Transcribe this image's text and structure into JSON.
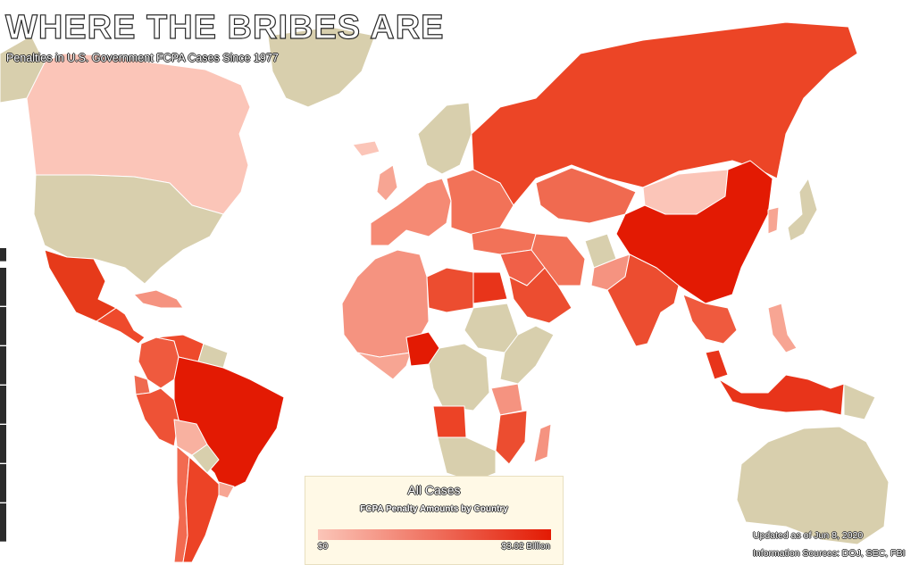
{
  "title": "WHERE THE BRIBES ARE",
  "subtitle": "Penalties in U.S. Government FCPA Cases Since 1977",
  "legend": {
    "title": "All Cases",
    "subtitle": "FCPA Penalty Amounts by Country",
    "min_label": "$0",
    "max_label": "$3.02 Billion",
    "color_low": "#fbc5b8",
    "color_high": "#e31a03"
  },
  "footer": {
    "updated": "Updated as of Jun 8, 2020",
    "sources": "Information Sources: DOJ, SEC, FBI"
  },
  "colors": {
    "no_data": "#d8cfad",
    "background": "#ffffff",
    "legend_background": "#fff9e6"
  },
  "countries": [
    {
      "name": "Canada",
      "color": "#fbc5b8"
    },
    {
      "name": "Greenland",
      "color": "#d8cfad"
    },
    {
      "name": "United States",
      "color": "#d8cfad"
    },
    {
      "name": "Mexico",
      "color": "#e63a1a"
    },
    {
      "name": "Central America",
      "color": "#ee4a2c"
    },
    {
      "name": "Caribbean",
      "color": "#f59380"
    },
    {
      "name": "Colombia",
      "color": "#ef5a3e"
    },
    {
      "name": "Venezuela",
      "color": "#ee4a2c"
    },
    {
      "name": "Guianas",
      "color": "#d8cfad"
    },
    {
      "name": "Ecuador",
      "color": "#ef6a50"
    },
    {
      "name": "Peru",
      "color": "#ee5236"
    },
    {
      "name": "Brazil",
      "color": "#e31a03"
    },
    {
      "name": "Bolivia",
      "color": "#f8b1a0"
    },
    {
      "name": "Paraguay",
      "color": "#d8cfad"
    },
    {
      "name": "Chile",
      "color": "#f26a50"
    },
    {
      "name": "Argentina",
      "color": "#ec4326"
    },
    {
      "name": "Uruguay",
      "color": "#f7a593"
    },
    {
      "name": "Iceland",
      "color": "#fbc5b8"
    },
    {
      "name": "United Kingdom",
      "color": "#f7a593"
    },
    {
      "name": "Scandinavia",
      "color": "#d8cfad"
    },
    {
      "name": "Western Europe",
      "color": "#f58a74"
    },
    {
      "name": "Eastern Europe",
      "color": "#f27258"
    },
    {
      "name": "Russia",
      "color": "#ec4526"
    },
    {
      "name": "Kazakhstan",
      "color": "#f06a50"
    },
    {
      "name": "Mongolia",
      "color": "#fbc5b8"
    },
    {
      "name": "China",
      "color": "#e31a03"
    },
    {
      "name": "Japan",
      "color": "#d8cfad"
    },
    {
      "name": "Korea",
      "color": "#f7a593"
    },
    {
      "name": "Turkey",
      "color": "#f27258"
    },
    {
      "name": "Middle East",
      "color": "#f06048"
    },
    {
      "name": "Saudi Arabia",
      "color": "#ec4d30"
    },
    {
      "name": "Iran",
      "color": "#f27258"
    },
    {
      "name": "Afghanistan",
      "color": "#d8cfad"
    },
    {
      "name": "Pakistan",
      "color": "#f59380"
    },
    {
      "name": "India",
      "color": "#ec4d30"
    },
    {
      "name": "Southeast Asia",
      "color": "#ef5a3e"
    },
    {
      "name": "Philippines",
      "color": "#f7a593"
    },
    {
      "name": "Malaysia",
      "color": "#e8341a"
    },
    {
      "name": "Indonesia",
      "color": "#e8341a"
    },
    {
      "name": "Papua New Guinea",
      "color": "#d8cfad"
    },
    {
      "name": "Australia",
      "color": "#d8cfad"
    },
    {
      "name": "North Africa",
      "color": "#f59380"
    },
    {
      "name": "Libya",
      "color": "#ec4d30"
    },
    {
      "name": "Egypt",
      "color": "#e8341a"
    },
    {
      "name": "West Africa",
      "color": "#f7a593"
    },
    {
      "name": "Nigeria",
      "color": "#e31a03"
    },
    {
      "name": "Sudan",
      "color": "#d8cfad"
    },
    {
      "name": "Central Africa",
      "color": "#d8cfad"
    },
    {
      "name": "East Africa",
      "color": "#d8cfad"
    },
    {
      "name": "Angola",
      "color": "#ec4326"
    },
    {
      "name": "Mozambique",
      "color": "#ec4d30"
    },
    {
      "name": "Tanzania",
      "color": "#f59380"
    },
    {
      "name": "Southern Africa",
      "color": "#d8cfad"
    },
    {
      "name": "Madagascar",
      "color": "#f59380"
    }
  ]
}
